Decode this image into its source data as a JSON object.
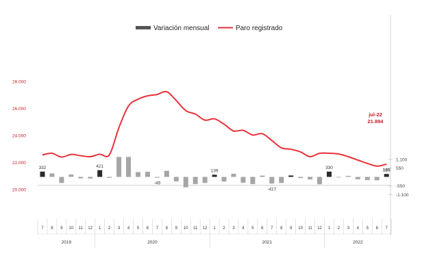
{
  "chart_data": {
    "type": "bar+line",
    "title": "",
    "legend": {
      "placement": "top-center",
      "bar_label": "Variación mensual",
      "line_label": "Paro registrado"
    },
    "months": [
      "7",
      "8",
      "9",
      "10",
      "11",
      "12",
      "1",
      "2",
      "3",
      "4",
      "5",
      "6",
      "7",
      "8",
      "9",
      "10",
      "11",
      "12",
      "1",
      "2",
      "3",
      "4",
      "5",
      "6",
      "7",
      "8",
      "9",
      "10",
      "11",
      "12",
      "1",
      "2",
      "3",
      "4",
      "5",
      "6",
      "7"
    ],
    "years": [
      {
        "label": "2019",
        "start": 0,
        "end": 5
      },
      {
        "label": "2020",
        "start": 6,
        "end": 17
      },
      {
        "label": "2021",
        "start": 18,
        "end": 29
      },
      {
        "label": "2022",
        "start": 30,
        "end": 36
      }
    ],
    "line_series": {
      "name": "Paro registrado",
      "color": "#e8303a",
      "axis": "left",
      "ylim": [
        18000,
        31000
      ],
      "ticks": [
        "20.000",
        "22.000",
        "24.000",
        "26.000",
        "28.000"
      ],
      "tick_values": [
        20000,
        22000,
        24000,
        26000,
        28000
      ],
      "values": [
        22580,
        22700,
        22420,
        22620,
        22520,
        22450,
        22630,
        22580,
        24600,
        26200,
        26700,
        26950,
        27050,
        27250,
        26600,
        25850,
        25600,
        25150,
        25250,
        24850,
        24350,
        24400,
        24050,
        24150,
        23650,
        23100,
        23000,
        22800,
        22450,
        22700,
        22700,
        22650,
        22450,
        22200,
        21950,
        21750,
        21894
      ]
    },
    "bar_series": {
      "name": "Variación mensual",
      "axis": "right",
      "ylim": [
        -2500,
        8500
      ],
      "ticks": [
        "-1.100",
        "-550",
        "550",
        "1.100"
      ],
      "tick_values": [
        -1100,
        -550,
        550,
        1100
      ],
      "color_normal": "#a6a6a6",
      "color_highlight": "#2b2b2b",
      "highlight_indices": [
        0,
        6,
        18,
        26,
        30,
        36
      ],
      "values": [
        332,
        220,
        -380,
        150,
        -90,
        -100,
        421,
        -60,
        1250,
        1250,
        300,
        320,
        -49,
        380,
        -280,
        -650,
        -450,
        -380,
        139,
        -290,
        200,
        -370,
        -450,
        80,
        -417,
        -380,
        90,
        -70,
        -160,
        -460,
        330,
        -20,
        60,
        -150,
        -200,
        -210,
        185
      ],
      "labels": [
        {
          "index": 0,
          "text": "332"
        },
        {
          "index": 6,
          "text": "421"
        },
        {
          "index": 12,
          "text": "-49"
        },
        {
          "index": 18,
          "text": "139"
        },
        {
          "index": 24,
          "text": "-417"
        },
        {
          "index": 30,
          "text": "330"
        },
        {
          "index": 36,
          "text": "185"
        }
      ]
    },
    "annotation": {
      "line1": "jul-22",
      "line2": "21.894"
    },
    "grid": false
  }
}
